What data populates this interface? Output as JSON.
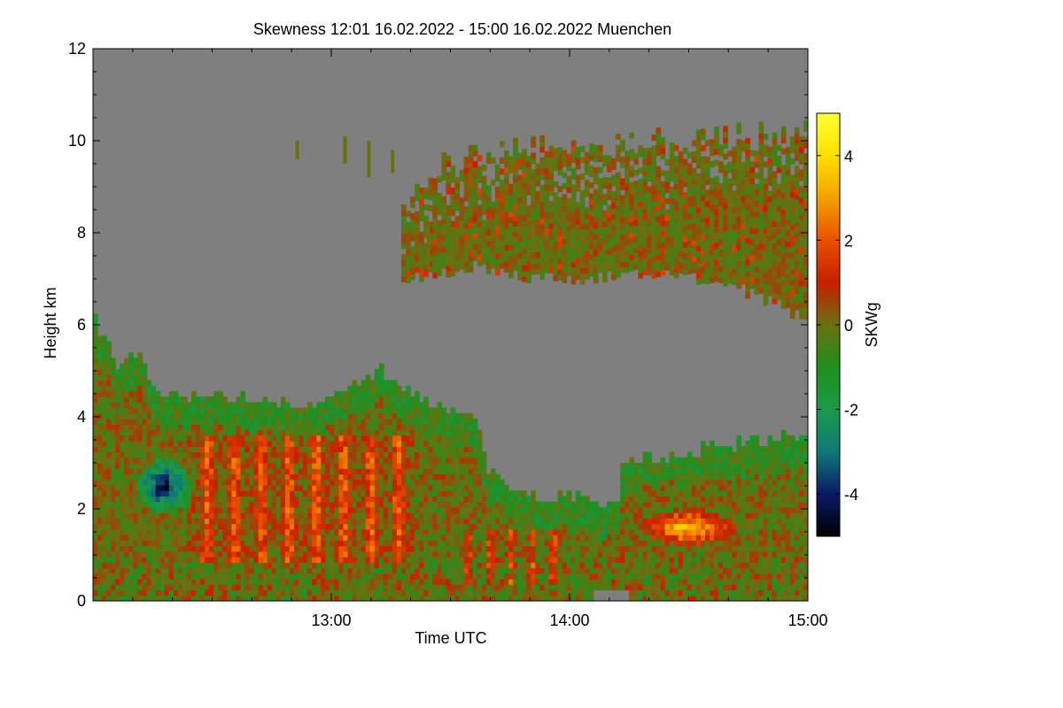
{
  "chart_data": {
    "type": "heatmap",
    "title": "Skewness   12:01 16.02.2022 - 15:00 16.02.2022 Muenchen",
    "xlabel": "Time UTC",
    "ylabel": "Height km",
    "xlim": [
      12.0,
      15.0
    ],
    "ylim": [
      0,
      12
    ],
    "x_ticks": [
      {
        "value": 13,
        "label": "13:00"
      },
      {
        "value": 14,
        "label": "14:00"
      },
      {
        "value": 15,
        "label": "15:00"
      }
    ],
    "y_ticks": [
      {
        "value": 0,
        "label": "0"
      },
      {
        "value": 2,
        "label": "2"
      },
      {
        "value": 4,
        "label": "4"
      },
      {
        "value": 6,
        "label": "6"
      },
      {
        "value": 8,
        "label": "8"
      },
      {
        "value": 10,
        "label": "10"
      },
      {
        "value": 12,
        "label": "12"
      }
    ],
    "colorbar": {
      "label": "SKWg",
      "range": [
        -5,
        5
      ],
      "ticks": [
        {
          "value": 4,
          "label": "4"
        },
        {
          "value": 2,
          "label": "2"
        },
        {
          "value": 0,
          "label": "0"
        },
        {
          "value": -2,
          "label": "-2"
        },
        {
          "value": -4,
          "label": "-4"
        }
      ],
      "stops": [
        {
          "value": -5,
          "color": "#000000"
        },
        {
          "value": -4,
          "color": "#0a1a66"
        },
        {
          "value": -3,
          "color": "#107878"
        },
        {
          "value": -2,
          "color": "#1a9a4a"
        },
        {
          "value": -1,
          "color": "#1f8f1f"
        },
        {
          "value": 0,
          "color": "#6a7010"
        },
        {
          "value": 1,
          "color": "#c81e00"
        },
        {
          "value": 2,
          "color": "#e85000"
        },
        {
          "value": 3,
          "color": "#f5a000"
        },
        {
          "value": 4,
          "color": "#ffe000"
        },
        {
          "value": 5,
          "color": "#ffff33"
        }
      ]
    },
    "missing_color": "#7f7f7f",
    "regions": [
      {
        "name": "upper_cloud_layer",
        "x_range": [
          13.4,
          15.0
        ],
        "top_km": [
          9.5,
          10.2
        ],
        "bottom_km": [
          7.0,
          6.1
        ],
        "dominant_value": 0
      },
      {
        "name": "boundary_layer",
        "x_range": [
          12.0,
          15.0
        ],
        "top_km": [
          6.0,
          3.5
        ],
        "bottom_km": [
          0,
          0
        ],
        "dominant_value": 0
      },
      {
        "name": "negative_core",
        "x_center": 12.3,
        "height_km": 2.4,
        "value": -4
      },
      {
        "name": "positive_core",
        "x_center": 14.45,
        "height_km": 1.5,
        "value": 4
      }
    ]
  }
}
